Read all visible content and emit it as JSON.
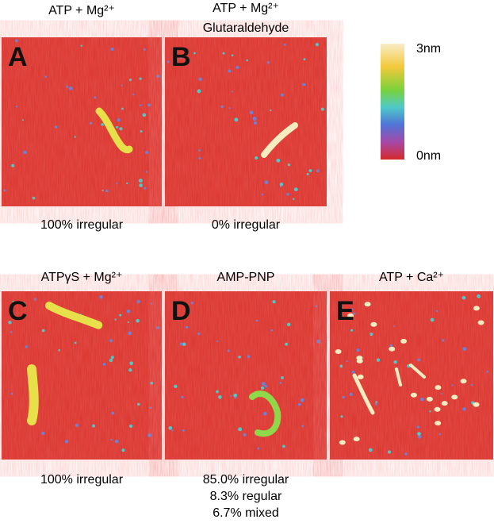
{
  "panels": [
    {
      "letter": "A",
      "title": [
        "ATP + Mg²⁺"
      ],
      "caption": [
        "100% irregular"
      ]
    },
    {
      "letter": "B",
      "title": [
        "ATP + Mg²⁺",
        "Glutaraldehyde"
      ],
      "caption": [
        "0% irregular"
      ]
    },
    {
      "letter": "C",
      "title": [
        "ATPγS + Mg²⁺"
      ],
      "caption": [
        "100% irregular"
      ]
    },
    {
      "letter": "D",
      "title": [
        "AMP-PNP"
      ],
      "caption": [
        "85.0% irregular",
        "8.3% regular",
        "6.7% mixed"
      ]
    },
    {
      "letter": "E",
      "title": [
        "ATP + Ca²⁺"
      ],
      "caption": []
    }
  ],
  "scale": {
    "max": "3nm",
    "min": "0nm"
  }
}
